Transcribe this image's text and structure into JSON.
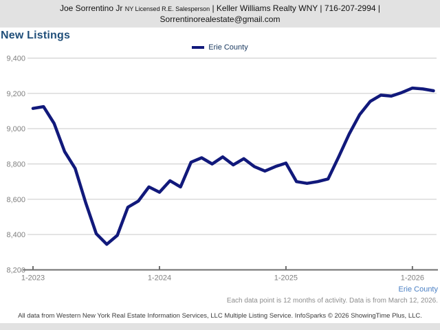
{
  "header": {
    "name": "Joe Sorrentino Jr",
    "license": "NY Licensed R.E. Salesperson",
    "line1_rest": "| Keller Williams Realty WNY | 716-207-2994 |",
    "email": "Sorrentinorealestate@gmail.com"
  },
  "title": "New Listings",
  "legend": {
    "label": "Erie County"
  },
  "bottom": {
    "series_label": "Erie County",
    "note": "Each data point is 12 months of activity. Data is from March 12, 2026."
  },
  "footer": {
    "text": "All data from Western New York Real Estate Information Services, LLC Multiple Listing Service. InfoSparks © 2026 ShowingTime Plus, LLC."
  },
  "colors": {
    "header_band_bg": "#e2e2e2",
    "title_text": "#1f4e79",
    "legend_text": "#17375e",
    "line": "#11197b",
    "gridline": "#c9c9c9",
    "axis": "#6f6f6f",
    "axis_label": "#7f7f7f",
    "series_link": "#4b80c4",
    "footnote_text": "#8c8c8c",
    "footer_text": "#3a3a3a"
  },
  "chart_data": {
    "type": "line",
    "title": "New Listings",
    "line_color": "#11197b",
    "grid": true,
    "legend_position": "top-center",
    "ylim": [
      8200,
      9400
    ],
    "yticks": [
      {
        "value": 8200,
        "label": "8,200"
      },
      {
        "value": 8400,
        "label": "8,400"
      },
      {
        "value": 8600,
        "label": "8,600"
      },
      {
        "value": 8800,
        "label": "8,800"
      },
      {
        "value": 9000,
        "label": "9,000"
      },
      {
        "value": 9200,
        "label": "9,200"
      },
      {
        "value": 9400,
        "label": "9,400"
      }
    ],
    "xticks": [
      {
        "index": 0,
        "label": "1-2023"
      },
      {
        "index": 12,
        "label": "1-2024"
      },
      {
        "index": 24,
        "label": "1-2025"
      },
      {
        "index": 36,
        "label": "1-2026"
      }
    ],
    "x": [
      "1-2023",
      "2-2023",
      "3-2023",
      "4-2023",
      "5-2023",
      "6-2023",
      "7-2023",
      "8-2023",
      "9-2023",
      "10-2023",
      "11-2023",
      "12-2023",
      "1-2024",
      "2-2024",
      "3-2024",
      "4-2024",
      "5-2024",
      "6-2024",
      "7-2024",
      "8-2024",
      "9-2024",
      "10-2024",
      "11-2024",
      "12-2024",
      "1-2025",
      "2-2025",
      "3-2025",
      "4-2025",
      "5-2025",
      "6-2025",
      "7-2025",
      "8-2025",
      "9-2025",
      "10-2025",
      "11-2025",
      "12-2025",
      "1-2026",
      "2-2026",
      "3-2026"
    ],
    "series": [
      {
        "name": "Erie County",
        "values": [
          9115,
          9125,
          9030,
          8870,
          8775,
          8580,
          8405,
          8345,
          8395,
          8555,
          8590,
          8670,
          8640,
          8705,
          8670,
          8810,
          8835,
          8800,
          8840,
          8795,
          8830,
          8785,
          8760,
          8785,
          8805,
          8700,
          8690,
          8700,
          8715,
          8840,
          8970,
          9080,
          9155,
          9190,
          9185,
          9205,
          9230,
          9225,
          9215
        ]
      }
    ]
  }
}
